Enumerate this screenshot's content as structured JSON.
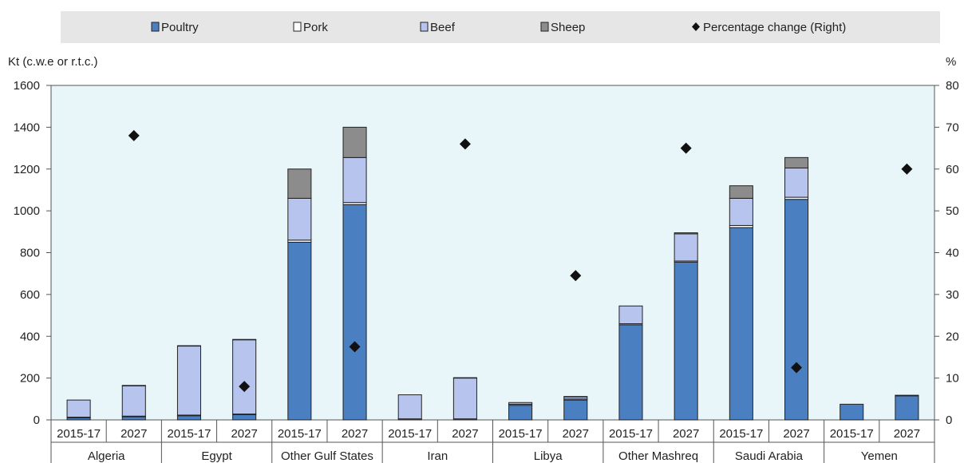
{
  "chart_data": {
    "type": "bar",
    "stacked": true,
    "left_axis_unit": "Kt (c.w.e or r.t.c.)",
    "right_axis_unit": "%",
    "left_ticks": [
      "0",
      "200",
      "400",
      "600",
      "800",
      "1000",
      "1200",
      "1400",
      "1600"
    ],
    "right_ticks": [
      "0",
      "10",
      "20",
      "30",
      "40",
      "50",
      "60",
      "70",
      "80"
    ],
    "ylim_left": [
      0,
      1600
    ],
    "ylim_right": [
      0,
      80
    ],
    "groups": [
      "Algeria",
      "Egypt",
      "Other Gulf States",
      "Iran",
      "Libya",
      "Other Mashreq",
      "Saudi Arabia",
      "Yemen"
    ],
    "periods": [
      "2015-17",
      "2027"
    ],
    "series": [
      {
        "name": "Poultry",
        "color": "#4a7fc1",
        "values": [
          10,
          15,
          20,
          25,
          850,
          1030,
          5,
          5,
          70,
          95,
          455,
          755,
          920,
          1055,
          75,
          115
        ]
      },
      {
        "name": "Pork",
        "color": "#ffffff",
        "values": [
          3,
          3,
          3,
          3,
          10,
          10,
          0,
          0,
          5,
          5,
          5,
          5,
          10,
          10,
          0,
          0
        ]
      },
      {
        "name": "Beef",
        "color": "#b7c4ee",
        "values": [
          82,
          145,
          330,
          355,
          200,
          215,
          115,
          195,
          8,
          10,
          85,
          130,
          130,
          140,
          0,
          3
        ]
      },
      {
        "name": "Sheep",
        "color": "#8c8c8c",
        "values": [
          0,
          2,
          2,
          2,
          140,
          145,
          0,
          2,
          0,
          2,
          0,
          5,
          60,
          50,
          0,
          0
        ]
      }
    ],
    "percentage_change": {
      "name": "Percentage change (Right)",
      "values": [
        68,
        8,
        17.5,
        66,
        34.5,
        65,
        12.5,
        60
      ]
    },
    "grid": false,
    "legend_position": "top",
    "colors": {
      "plot_bg": "#e8f6fa",
      "legend_bg": "#e6e6e6",
      "marker": "#111111"
    }
  }
}
